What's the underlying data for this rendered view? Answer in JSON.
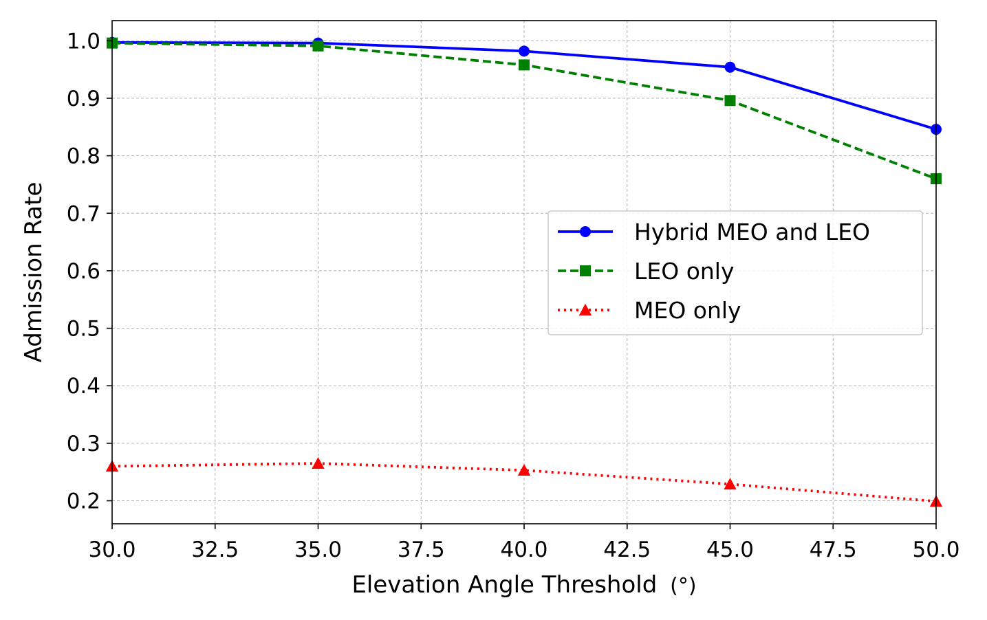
{
  "chart_data": {
    "type": "line",
    "title": "",
    "xlabel": "Elevation Angle Threshold",
    "xlabel_unit": "(°)",
    "ylabel": "Admission Rate",
    "xlim": [
      30.0,
      50.0
    ],
    "ylim": [
      0.16,
      1.035
    ],
    "grid": true,
    "legend_position": "center-right",
    "x": [
      30,
      35,
      40,
      45,
      50
    ],
    "xticks": [
      30.0,
      32.5,
      35.0,
      37.5,
      40.0,
      42.5,
      45.0,
      47.5,
      50.0
    ],
    "xtick_labels": [
      "30.0",
      "32.5",
      "35.0",
      "37.5",
      "40.0",
      "42.5",
      "45.0",
      "47.5",
      "50.0"
    ],
    "yticks": [
      0.2,
      0.3,
      0.4,
      0.5,
      0.6,
      0.7,
      0.8,
      0.9,
      1.0
    ],
    "ytick_labels": [
      "0.2",
      "0.3",
      "0.4",
      "0.5",
      "0.6",
      "0.7",
      "0.8",
      "0.9",
      "1.0"
    ],
    "series": [
      {
        "name": "Hybrid MEO and LEO",
        "values": [
          0.997,
          0.996,
          0.982,
          0.954,
          0.846
        ],
        "color": "#0000ff",
        "line_style": "solid",
        "marker": "circle"
      },
      {
        "name": "LEO only",
        "values": [
          0.996,
          0.991,
          0.958,
          0.896,
          0.76
        ],
        "color": "#008000",
        "line_style": "dashed",
        "marker": "square"
      },
      {
        "name": "MEO only",
        "values": [
          0.26,
          0.265,
          0.253,
          0.229,
          0.199
        ],
        "color": "#ff0000",
        "line_style": "dotted",
        "marker": "triangle"
      }
    ]
  }
}
